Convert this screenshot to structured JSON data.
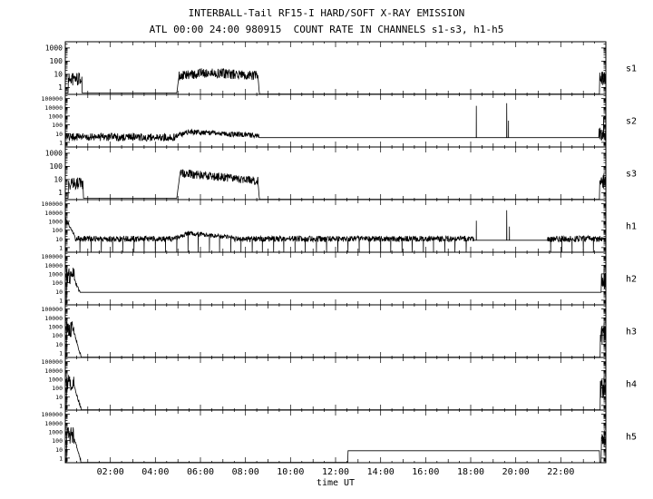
{
  "chart_data": {
    "type": "line",
    "title": "INTERBALL-Tail RF15-I HARD/SOFT X-RAY EMISSION",
    "subtitle": "ATL 00:00 24:00 980915  COUNT RATE IN CHANNELS s1-s3, h1-h5",
    "x_axis": {
      "label": "time UT",
      "range_hours": [
        0,
        24
      ],
      "tick_hours": [
        2,
        4,
        6,
        8,
        10,
        12,
        14,
        16,
        18,
        20,
        22
      ],
      "tick_labels": [
        "02:00",
        "04:00",
        "06:00",
        "08:00",
        "10:00",
        "12:00",
        "14:00",
        "16:00",
        "18:00",
        "20:00",
        "22:00"
      ]
    },
    "y_scale": "log",
    "panels": [
      {
        "label": "s1",
        "ylim": [
          0.3,
          3000
        ],
        "ytick_values": [
          1000,
          100,
          10,
          1
        ],
        "ytick_labels": [
          "1000",
          "100",
          "10",
          "1"
        ],
        "segments": [
          {
            "t": [
              0,
              0.12
            ],
            "type": "flat",
            "level": 0.38
          },
          {
            "t": [
              0.12,
              0.75
            ],
            "type": "noisy",
            "level": 4.5,
            "noise_dex": 0.5
          },
          {
            "t": [
              0.75,
              4.95
            ],
            "type": "flat",
            "level": 0.38
          },
          {
            "t": [
              4.95,
              5.05
            ],
            "type": "ramp",
            "from": 0.38,
            "to": 8
          },
          {
            "t": [
              5.05,
              6.2
            ],
            "type": "ramp",
            "from": 7,
            "to": 13,
            "noise_dex": 0.38
          },
          {
            "t": [
              6.2,
              8.55
            ],
            "type": "ramp",
            "from": 13,
            "to": 8,
            "noise_dex": 0.38
          },
          {
            "t": [
              8.55,
              8.62
            ],
            "type": "ramp",
            "from": 8,
            "to": 0.32
          },
          {
            "t": [
              8.62,
              23.72
            ],
            "type": "flat",
            "level": 0.32
          },
          {
            "t": [
              23.72,
              24
            ],
            "type": "noisy",
            "level": 5,
            "noise_dex": 0.55
          }
        ],
        "spikes": [],
        "dropouts": []
      },
      {
        "label": "s2",
        "ylim": [
          0.3,
          300000
        ],
        "ytick_values": [
          100000,
          10000,
          1000,
          100,
          10,
          1
        ],
        "ytick_labels": [
          "100000",
          "10000",
          "1000",
          "100",
          "10",
          "1"
        ],
        "segments": [
          {
            "t": [
              0,
              4.9
            ],
            "type": "noisy",
            "level": 4,
            "noise_dex": 0.45
          },
          {
            "t": [
              4.9,
              5.5
            ],
            "type": "ramp",
            "from": 5,
            "to": 16,
            "noise_dex": 0.3
          },
          {
            "t": [
              5.5,
              8.6
            ],
            "type": "ramp",
            "from": 16,
            "to": 6,
            "noise_dex": 0.3
          },
          {
            "t": [
              8.6,
              23.7
            ],
            "type": "flat",
            "level": 3.5
          },
          {
            "t": [
              23.7,
              24
            ],
            "type": "noisy",
            "level": 8,
            "noise_dex": 0.8
          }
        ],
        "spikes": [
          {
            "t": 18.25,
            "peak": 15000
          },
          {
            "t": 19.6,
            "peak": 30000
          },
          {
            "t": 19.68,
            "peak": 300
          },
          {
            "t": 23.9,
            "peak": 800
          }
        ],
        "dropouts": []
      },
      {
        "label": "s3",
        "ylim": [
          0.3,
          3000
        ],
        "ytick_values": [
          1000,
          100,
          10,
          1
        ],
        "ytick_labels": [
          "1000",
          "100",
          "10",
          "1"
        ],
        "segments": [
          {
            "t": [
              0,
              0.12
            ],
            "type": "flat",
            "level": 0.38
          },
          {
            "t": [
              0.12,
              0.8
            ],
            "type": "noisy",
            "level": 4.5,
            "noise_dex": 0.5
          },
          {
            "t": [
              0.8,
              4.95
            ],
            "type": "flat",
            "level": 0.38
          },
          {
            "t": [
              4.95,
              5.1
            ],
            "type": "ramp",
            "from": 0.38,
            "to": 35
          },
          {
            "t": [
              5.1,
              8.55
            ],
            "type": "ramp",
            "from": 32,
            "to": 8,
            "noise_dex": 0.32
          },
          {
            "t": [
              8.55,
              8.62
            ],
            "type": "ramp",
            "from": 8,
            "to": 0.32
          },
          {
            "t": [
              8.62,
              23.72
            ],
            "type": "flat",
            "level": 0.32
          },
          {
            "t": [
              23.72,
              24
            ],
            "type": "noisy",
            "level": 7,
            "noise_dex": 0.6
          }
        ],
        "spikes": [],
        "dropouts": []
      },
      {
        "label": "h1",
        "ylim": [
          0.3,
          300000
        ],
        "ytick_values": [
          100000,
          10000,
          1000,
          100,
          10,
          1
        ],
        "ytick_labels": [
          "100000",
          "10000",
          "1000",
          "100",
          "10",
          "1"
        ],
        "segments": [
          {
            "t": [
              0,
              0.45
            ],
            "type": "ramp",
            "from": 2500,
            "to": 15,
            "noise_dex": 0.15
          },
          {
            "t": [
              0.45,
              4.9
            ],
            "type": "noisy",
            "level": 10,
            "noise_dex": 0.35
          },
          {
            "t": [
              4.9,
              5.5
            ],
            "type": "ramp",
            "from": 12,
            "to": 45,
            "noise_dex": 0.25
          },
          {
            "t": [
              5.5,
              7.5
            ],
            "type": "ramp",
            "from": 45,
            "to": 14,
            "noise_dex": 0.25
          },
          {
            "t": [
              7.5,
              18.15
            ],
            "type": "noisy",
            "level": 10,
            "noise_dex": 0.33
          },
          {
            "t": [
              18.15,
              21.4
            ],
            "type": "flat",
            "level": 7
          },
          {
            "t": [
              21.4,
              24
            ],
            "type": "noisy",
            "level": 10,
            "noise_dex": 0.35
          }
        ],
        "spikes": [
          {
            "t": 18.25,
            "peak": 1200
          },
          {
            "t": 19.6,
            "peak": 18000
          },
          {
            "t": 19.72,
            "peak": 250
          }
        ],
        "dropouts": [
          0.65,
          1.15,
          1.6,
          2.1,
          2.55,
          3.05,
          3.5,
          4.0,
          4.45,
          4.95,
          5.45,
          5.9,
          6.4,
          6.85,
          7.35,
          7.8,
          8.3,
          8.75,
          9.25,
          9.7,
          10.2,
          10.65,
          11.15,
          11.6,
          12.1,
          12.55,
          13.05,
          13.5,
          14.0,
          14.45,
          14.95,
          15.4,
          15.9,
          16.35,
          16.85,
          17.3,
          17.8,
          21.55,
          22.05,
          22.5,
          23.0,
          23.45
        ]
      },
      {
        "label": "h2",
        "ylim": [
          0.3,
          300000
        ],
        "ytick_values": [
          100000,
          10000,
          1000,
          100,
          10,
          1
        ],
        "ytick_labels": [
          "100000",
          "10000",
          "1000",
          "100",
          "10",
          "1"
        ],
        "segments": [
          {
            "t": [
              0,
              0.05
            ],
            "type": "flat",
            "level": 0.35
          },
          {
            "t": [
              0.05,
              0.4
            ],
            "type": "noisy",
            "level": 500,
            "noise_dex": 1.0
          },
          {
            "t": [
              0.4,
              0.65
            ],
            "type": "ramp",
            "from": 200,
            "to": 8,
            "noise_dex": 0.2
          },
          {
            "t": [
              0.65,
              23.8
            ],
            "type": "flat",
            "level": 8
          },
          {
            "t": [
              23.8,
              24
            ],
            "type": "noisy",
            "level": 100,
            "noise_dex": 1.1
          }
        ],
        "spikes": [
          {
            "t": 23.92,
            "peak": 4000
          }
        ],
        "dropouts": []
      },
      {
        "label": "h3",
        "ylim": [
          0.3,
          300000
        ],
        "ytick_values": [
          100000,
          10000,
          1000,
          100,
          10,
          1
        ],
        "ytick_labels": [
          "100000",
          "10000",
          "1000",
          "100",
          "10",
          "1"
        ],
        "segments": [
          {
            "t": [
              0,
              0.05
            ],
            "type": "flat",
            "level": 0.35
          },
          {
            "t": [
              0.05,
              0.4
            ],
            "type": "noisy",
            "level": 400,
            "noise_dex": 1.0
          },
          {
            "t": [
              0.4,
              0.7
            ],
            "type": "ramp",
            "from": 150,
            "to": 0.4,
            "noise_dex": 0.2
          },
          {
            "t": [
              0.7,
              23.75
            ],
            "type": "flat",
            "level": 0.32
          },
          {
            "t": [
              23.75,
              24
            ],
            "type": "noisy",
            "level": 80,
            "noise_dex": 1.1
          }
        ],
        "spikes": [
          {
            "t": 23.92,
            "peak": 2500
          }
        ],
        "dropouts": []
      },
      {
        "label": "h4",
        "ylim": [
          0.3,
          300000
        ],
        "ytick_values": [
          100000,
          10000,
          1000,
          100,
          10,
          1
        ],
        "ytick_labels": [
          "100000",
          "10000",
          "1000",
          "100",
          "10",
          "1"
        ],
        "segments": [
          {
            "t": [
              0,
              0.05
            ],
            "type": "flat",
            "level": 0.35
          },
          {
            "t": [
              0.05,
              0.4
            ],
            "type": "noisy",
            "level": 400,
            "noise_dex": 1.0
          },
          {
            "t": [
              0.4,
              0.7
            ],
            "type": "ramp",
            "from": 150,
            "to": 0.4,
            "noise_dex": 0.2
          },
          {
            "t": [
              0.7,
              23.75
            ],
            "type": "flat",
            "level": 0.32
          },
          {
            "t": [
              23.75,
              24
            ],
            "type": "noisy",
            "level": 80,
            "noise_dex": 1.1
          }
        ],
        "spikes": [
          {
            "t": 23.92,
            "peak": 2200
          }
        ],
        "dropouts": []
      },
      {
        "label": "h5",
        "ylim": [
          0.3,
          300000
        ],
        "ytick_values": [
          100000,
          10000,
          1000,
          100,
          10,
          1
        ],
        "ytick_labels": [
          "100000",
          "10000",
          "1000",
          "100",
          "10",
          "1"
        ],
        "segments": [
          {
            "t": [
              0,
              0.05
            ],
            "type": "flat",
            "level": 0.35
          },
          {
            "t": [
              0.05,
              0.4
            ],
            "type": "noisy",
            "level": 400,
            "noise_dex": 1.0
          },
          {
            "t": [
              0.4,
              0.7
            ],
            "type": "ramp",
            "from": 150,
            "to": 0.4,
            "noise_dex": 0.2
          },
          {
            "t": [
              0.7,
              12.55
            ],
            "type": "flat",
            "level": 0.32
          },
          {
            "t": [
              12.55,
              23.72
            ],
            "type": "flat",
            "level": 7
          },
          {
            "t": [
              23.72,
              23.8
            ],
            "type": "flat",
            "level": 0.32
          },
          {
            "t": [
              23.8,
              24
            ],
            "type": "noisy",
            "level": 60,
            "noise_dex": 1.0
          }
        ],
        "spikes": [
          {
            "t": 23.93,
            "peak": 1500
          }
        ],
        "dropouts": []
      }
    ]
  }
}
